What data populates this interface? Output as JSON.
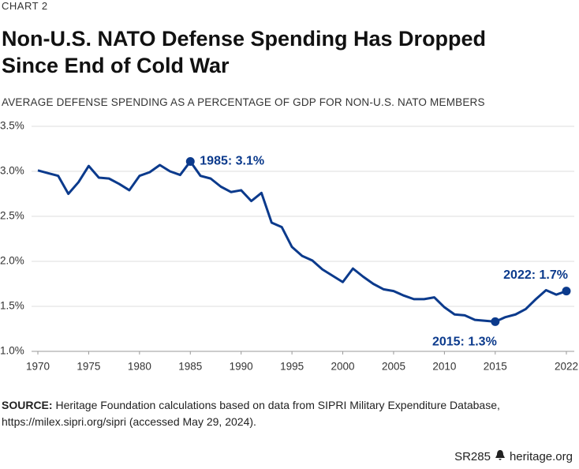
{
  "chart_label": "CHART 2",
  "chart_data": {
    "type": "line",
    "title": "Non-U.S. NATO Defense Spending Has Dropped Since End of Cold War",
    "subtitle": "AVERAGE DEFENSE SPENDING AS A PERCENTAGE OF GDP FOR NON-U.S. NATO MEMBERS",
    "x": [
      1970,
      1971,
      1972,
      1973,
      1974,
      1975,
      1976,
      1977,
      1978,
      1979,
      1980,
      1981,
      1982,
      1983,
      1984,
      1985,
      1986,
      1987,
      1988,
      1989,
      1990,
      1991,
      1992,
      1993,
      1994,
      1995,
      1996,
      1997,
      1998,
      1999,
      2000,
      2001,
      2002,
      2003,
      2004,
      2005,
      2006,
      2007,
      2008,
      2009,
      2010,
      2011,
      2012,
      2013,
      2014,
      2015,
      2016,
      2017,
      2018,
      2019,
      2020,
      2021,
      2022
    ],
    "series": [
      {
        "color": "#0b3a8c",
        "values": [
          3.01,
          2.98,
          2.95,
          2.75,
          2.88,
          3.06,
          2.93,
          2.92,
          2.86,
          2.79,
          2.95,
          2.99,
          3.07,
          3.0,
          2.96,
          3.11,
          2.95,
          2.92,
          2.83,
          2.77,
          2.79,
          2.67,
          2.76,
          2.43,
          2.38,
          2.16,
          2.06,
          2.01,
          1.91,
          1.84,
          1.77,
          1.92,
          1.83,
          1.75,
          1.69,
          1.67,
          1.62,
          1.58,
          1.58,
          1.6,
          1.49,
          1.41,
          1.4,
          1.35,
          1.34,
          1.33,
          1.38,
          1.41,
          1.47,
          1.58,
          1.68,
          1.63,
          1.67
        ]
      }
    ],
    "xlim": [
      1970,
      2022
    ],
    "xticks": [
      1970,
      1975,
      1980,
      1985,
      1990,
      1995,
      2000,
      2005,
      2010,
      2015,
      2022
    ],
    "ylim": [
      1,
      3.5
    ],
    "yticks": [
      {
        "value": 1,
        "label": "1.0%"
      },
      {
        "value": 1.5,
        "label": "1.5%"
      },
      {
        "value": 2,
        "label": "2.0%"
      },
      {
        "value": 2.5,
        "label": "2.5%"
      },
      {
        "value": 3,
        "label": "3.0%"
      },
      {
        "value": 3.5,
        "label": "3.5%"
      }
    ],
    "grid": true,
    "annotations": [
      {
        "text": "1985: 3.1%",
        "x": 1985
      },
      {
        "text": "2015: 1.3%",
        "x": 2015
      },
      {
        "text": "2022: 1.7%",
        "x": 2022
      }
    ]
  },
  "source_label": "SOURCE:",
  "source": "Heritage Foundation calculations based on data from SIPRI Military Expenditure Database, https://milex.sipri.org/sipri (accessed May 29, 2024).",
  "footer": {
    "report": "SR285",
    "site": "heritage.org"
  }
}
